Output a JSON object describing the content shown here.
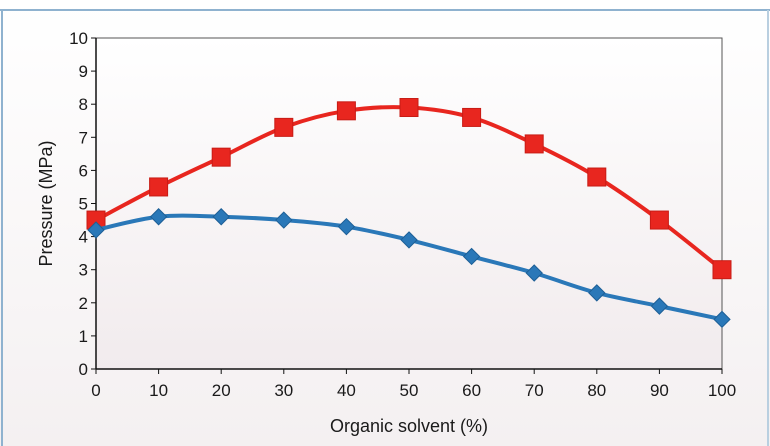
{
  "chart_data": {
    "type": "line",
    "xlabel": "Organic solvent (%)",
    "ylabel": "Pressure (MPa)",
    "x": [
      0,
      10,
      20,
      30,
      40,
      50,
      60,
      70,
      80,
      90,
      100
    ],
    "xlim": [
      0,
      100
    ],
    "ylim": [
      0,
      10
    ],
    "xticks": [
      "0",
      "10",
      "20",
      "30",
      "40",
      "50",
      "60",
      "70",
      "80",
      "90",
      "100"
    ],
    "yticks": [
      "0",
      "1",
      "2",
      "3",
      "4",
      "5",
      "6",
      "7",
      "8",
      "9",
      "10"
    ],
    "grid": false,
    "series": [
      {
        "marker": "square",
        "color": "#e8261f",
        "values": [
          4.5,
          5.5,
          6.4,
          7.3,
          7.8,
          7.9,
          7.6,
          6.8,
          5.8,
          4.5,
          3.0
        ]
      },
      {
        "marker": "diamond",
        "color": "#2a78b8",
        "values": [
          4.2,
          4.6,
          4.6,
          4.5,
          4.3,
          3.9,
          3.4,
          2.9,
          2.3,
          1.9,
          1.5
        ]
      }
    ]
  }
}
